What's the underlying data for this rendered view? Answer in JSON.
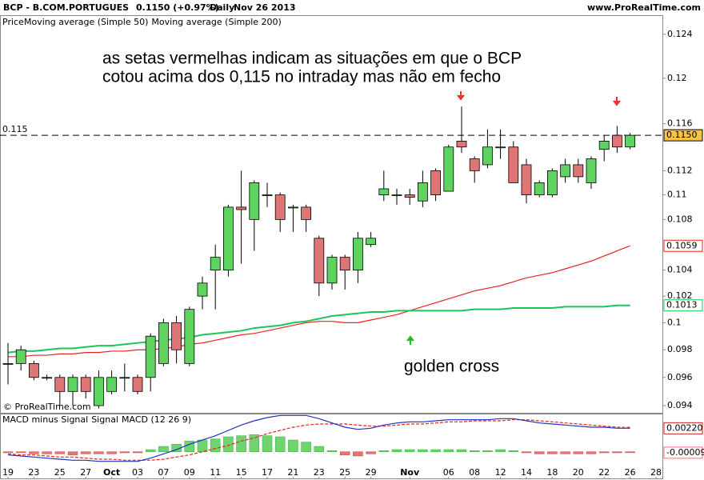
{
  "header": {
    "symbol": "BCP - B.COM.PORTUGUES",
    "quote": "0.1150 (+0.97%)",
    "period": "Daily",
    "date": "Nov 26 2013",
    "site": "www.ProRealTime.com",
    "copyright": "© ProRealTime.com"
  },
  "chart_data": [
    {
      "type": "candlestick",
      "legend_title": "Price",
      "log_scale": true,
      "annotations": [
        "as setas vermelhas indicam as situações em que o BCP",
        "cotou acima dos 0,115 no intraday mas não em fecho",
        "golden cross"
      ],
      "reference_line": {
        "value": 0.115,
        "label": "0.115"
      },
      "categories": [
        "19",
        null,
        "23",
        null,
        "25",
        null,
        "27",
        null,
        "Oct",
        null,
        "03",
        null,
        "07",
        null,
        "09",
        null,
        "11",
        null,
        "15",
        null,
        "17",
        null,
        "21",
        null,
        "23",
        null,
        "25",
        null,
        "29",
        null,
        null,
        "Nov",
        null,
        null,
        "06",
        null,
        "08",
        null,
        "12",
        null,
        "14",
        null,
        "18",
        null,
        "20",
        null,
        "22",
        null,
        "26",
        null,
        "28"
      ],
      "open": [
        0.097,
        0.097,
        0.097,
        0.096,
        0.096,
        0.095,
        0.096,
        0.094,
        0.095,
        0.096,
        0.096,
        0.096,
        0.097,
        0.1,
        0.097,
        0.102,
        0.104,
        0.104,
        0.109,
        0.108,
        0.11,
        0.11,
        0.109,
        0.109,
        0.1065,
        0.103,
        0.105,
        0.104,
        0.106,
        0.11,
        0.11,
        0.11,
        0.1095,
        0.112,
        0.1103,
        0.1145,
        0.113,
        0.1125,
        0.114,
        0.114,
        0.1125,
        0.11,
        0.11,
        0.1115,
        0.1125,
        0.111,
        0.1138,
        0.115,
        0.114,
        null,
        null
      ],
      "high": [
        0.0985,
        0.0983,
        0.0972,
        0.0962,
        0.0962,
        0.0962,
        0.0962,
        0.0965,
        0.0965,
        0.097,
        0.0962,
        0.0992,
        0.1003,
        0.1005,
        0.1012,
        0.1035,
        0.106,
        0.1092,
        0.112,
        0.1112,
        0.111,
        0.1102,
        0.1092,
        0.1092,
        0.1067,
        0.1052,
        0.1052,
        0.107,
        0.107,
        0.112,
        0.1105,
        0.1105,
        0.112,
        0.1122,
        0.1142,
        0.1175,
        0.1132,
        0.1155,
        0.1155,
        0.1145,
        0.113,
        0.1112,
        0.1122,
        0.113,
        0.113,
        0.1132,
        0.115,
        0.1158,
        0.1152,
        null,
        null
      ],
      "low": [
        0.0955,
        0.0965,
        0.0958,
        0.0958,
        0.094,
        0.094,
        0.0945,
        0.0938,
        0.0948,
        0.095,
        0.0948,
        0.095,
        0.0968,
        0.097,
        0.0968,
        0.101,
        0.101,
        0.1035,
        0.1045,
        0.1055,
        0.109,
        0.107,
        0.107,
        0.107,
        0.102,
        0.1025,
        0.1025,
        0.103,
        0.1058,
        0.1095,
        0.1092,
        0.1092,
        0.109,
        0.1095,
        0.1103,
        0.1135,
        0.111,
        0.1122,
        0.113,
        0.111,
        0.1093,
        0.1098,
        0.1098,
        0.111,
        0.111,
        0.1105,
        0.1128,
        0.1135,
        0.1138,
        null,
        null
      ],
      "close": [
        0.097,
        0.098,
        0.096,
        0.096,
        0.095,
        0.096,
        0.095,
        0.096,
        0.096,
        0.096,
        0.095,
        0.099,
        0.1,
        0.098,
        0.101,
        0.103,
        0.105,
        0.109,
        0.1088,
        0.111,
        0.11,
        0.108,
        0.109,
        0.108,
        0.103,
        0.105,
        0.104,
        0.1065,
        0.1065,
        0.1105,
        0.11,
        0.1098,
        0.111,
        0.11,
        0.114,
        0.114,
        0.112,
        0.114,
        0.114,
        0.111,
        0.11,
        0.111,
        0.112,
        0.1125,
        0.1115,
        0.113,
        0.1145,
        0.114,
        0.115,
        null,
        null
      ],
      "close_labels": [
        null,
        null,
        null,
        null,
        null,
        null,
        null,
        null,
        null,
        null,
        null,
        null,
        null,
        null,
        null,
        null,
        null,
        null,
        null,
        null,
        null,
        null,
        null,
        null,
        null,
        null,
        null,
        null,
        null,
        null,
        null,
        null,
        null,
        null,
        null,
        null,
        null,
        null,
        null,
        null,
        null,
        null,
        null,
        null,
        null,
        null,
        null,
        null,
        "0.1150",
        null,
        null
      ],
      "up_color": "#5fd35f",
      "down_color": "#e07575",
      "label_color": "#f5c542",
      "series": [
        {
          "name": "Moving average (Simple 50)",
          "color": "#e8231e",
          "values": [
            0.0975,
            0.0975,
            0.0976,
            0.0976,
            0.0977,
            0.0977,
            0.0978,
            0.0978,
            0.0979,
            0.0979,
            0.098,
            0.098,
            0.0981,
            0.0982,
            0.0984,
            0.0985,
            0.0987,
            0.0989,
            0.0991,
            0.0992,
            0.0994,
            0.0996,
            0.0998,
            0.1,
            0.1001,
            0.1001,
            0.1,
            0.1,
            0.1002,
            0.1004,
            0.1006,
            0.1009,
            0.1012,
            0.1015,
            0.1018,
            0.1021,
            0.1024,
            0.1026,
            0.1028,
            0.1031,
            0.1034,
            0.1036,
            0.1038,
            0.1041,
            0.1044,
            0.1047,
            0.1051,
            0.1055,
            0.1059,
            null,
            null
          ],
          "value_labels": [
            null,
            null,
            null,
            null,
            null,
            null,
            null,
            null,
            null,
            null,
            null,
            null,
            null,
            null,
            null,
            null,
            null,
            null,
            null,
            null,
            null,
            null,
            null,
            null,
            null,
            null,
            null,
            null,
            null,
            null,
            null,
            null,
            null,
            null,
            null,
            null,
            null,
            null,
            null,
            null,
            null,
            null,
            null,
            null,
            null,
            null,
            null,
            null,
            "0.1059",
            null,
            null
          ]
        },
        {
          "name": "Moving average (Simple 200)",
          "color": "#1cc45a",
          "values": [
            0.0978,
            0.0979,
            0.0979,
            0.098,
            0.0981,
            0.0981,
            0.0982,
            0.0983,
            0.0983,
            0.0984,
            0.0985,
            0.0986,
            0.0987,
            0.0988,
            0.0989,
            0.0991,
            0.0992,
            0.0993,
            0.0994,
            0.0996,
            0.0997,
            0.0998,
            0.1,
            0.1001,
            0.1003,
            0.1005,
            0.1006,
            0.1007,
            0.1008,
            0.1008,
            0.1009,
            0.1009,
            0.1009,
            0.1009,
            0.1009,
            0.1009,
            0.101,
            0.101,
            0.101,
            0.1011,
            0.1011,
            0.1011,
            0.1011,
            0.1012,
            0.1012,
            0.1012,
            0.1012,
            0.1013,
            0.1013,
            null,
            null
          ],
          "value_labels": [
            null,
            null,
            null,
            null,
            null,
            null,
            null,
            null,
            null,
            null,
            null,
            null,
            null,
            null,
            null,
            null,
            null,
            null,
            null,
            null,
            null,
            null,
            null,
            null,
            null,
            null,
            null,
            null,
            null,
            null,
            null,
            null,
            null,
            null,
            null,
            null,
            null,
            null,
            null,
            null,
            null,
            null,
            null,
            null,
            null,
            null,
            null,
            null,
            "0.1013",
            null,
            null
          ]
        }
      ],
      "ylim": [
        0.0935,
        0.1257
      ],
      "yticks": [
        0.124,
        0.12,
        0.116,
        0.112,
        0.11,
        0.108,
        0.104,
        0.102,
        0.1,
        0.098,
        0.096,
        0.094
      ]
    },
    {
      "type": "macd",
      "ylim": [
        -0.0025,
        0.0035
      ],
      "series": [
        {
          "name": "MACD minus Signal",
          "color": "#6fd46f",
          "negative_color": "#e07575",
          "values": [
            -0.0001,
            -0.0001,
            -0.0002,
            -0.0002,
            -0.0002,
            -0.0003,
            -0.0002,
            -0.0002,
            -0.0002,
            -0.0001,
            -0.0001,
            0.0002,
            0.0005,
            0.0007,
            0.001,
            0.0011,
            0.0012,
            0.0014,
            0.0015,
            0.0016,
            0.0015,
            0.0014,
            0.0011,
            0.0009,
            0.0005,
            0.0001,
            -0.0003,
            -0.0004,
            -0.0002,
            0.0001,
            0.0002,
            0.0002,
            0.0002,
            0.0002,
            0.0002,
            0.0002,
            0.0001,
            0.0001,
            0.0002,
            0.0001,
            -0.0001,
            -0.0002,
            -0.0002,
            -0.0002,
            -0.0002,
            -0.0002,
            -0.0001,
            -0.0001,
            -9e-05,
            null,
            null
          ],
          "value_labels": [
            null,
            null,
            null,
            null,
            null,
            null,
            null,
            null,
            null,
            null,
            null,
            null,
            null,
            null,
            null,
            null,
            null,
            null,
            null,
            null,
            null,
            null,
            null,
            null,
            null,
            null,
            null,
            null,
            null,
            null,
            null,
            null,
            null,
            null,
            null,
            null,
            null,
            null,
            null,
            null,
            null,
            null,
            null,
            null,
            null,
            null,
            null,
            null,
            "-0.00009",
            null,
            null
          ]
        },
        {
          "name": "Signal",
          "color": "#e8231e",
          "values": [
            -0.0002,
            -0.0003,
            -0.0003,
            -0.0004,
            -0.0005,
            -0.0005,
            -0.0006,
            -0.0007,
            -0.0007,
            -0.0008,
            -0.0008,
            -0.0008,
            -0.0007,
            -0.0005,
            -0.0003,
            0.0,
            0.0003,
            0.0006,
            0.001,
            0.0013,
            0.0017,
            0.002,
            0.0023,
            0.0025,
            0.0026,
            0.0026,
            0.0026,
            0.0025,
            0.0024,
            0.0024,
            0.0025,
            0.0026,
            0.0026,
            0.0027,
            0.0028,
            0.0028,
            0.0029,
            0.0029,
            0.0029,
            0.003,
            0.003,
            0.0029,
            0.0028,
            0.0027,
            0.0026,
            0.0025,
            0.0024,
            0.0023,
            0.00229,
            null,
            null
          ]
        },
        {
          "name": "MACD (12 26 9)",
          "color": "#2030c0",
          "values": [
            -0.0003,
            -0.0004,
            -0.0005,
            -0.0006,
            -0.0007,
            -0.0008,
            -0.0008,
            -0.0009,
            -0.0009,
            -0.0009,
            -0.0009,
            -0.0006,
            -0.0002,
            0.0002,
            0.0007,
            0.0011,
            0.0015,
            0.002,
            0.0025,
            0.0029,
            0.0032,
            0.0034,
            0.0034,
            0.0034,
            0.0031,
            0.0027,
            0.0023,
            0.0021,
            0.0022,
            0.0025,
            0.0027,
            0.0028,
            0.0028,
            0.0029,
            0.003,
            0.003,
            0.003,
            0.003,
            0.0031,
            0.0031,
            0.0029,
            0.0027,
            0.0026,
            0.0025,
            0.0024,
            0.0023,
            0.0023,
            0.0022,
            0.0022,
            null,
            null
          ],
          "value_labels": [
            null,
            null,
            null,
            null,
            null,
            null,
            null,
            null,
            null,
            null,
            null,
            null,
            null,
            null,
            null,
            null,
            null,
            null,
            null,
            null,
            null,
            null,
            null,
            null,
            null,
            null,
            null,
            null,
            null,
            null,
            null,
            null,
            null,
            null,
            null,
            null,
            null,
            null,
            null,
            null,
            null,
            null,
            null,
            null,
            null,
            null,
            null,
            null,
            "0.00220",
            null,
            null
          ]
        }
      ]
    }
  ]
}
